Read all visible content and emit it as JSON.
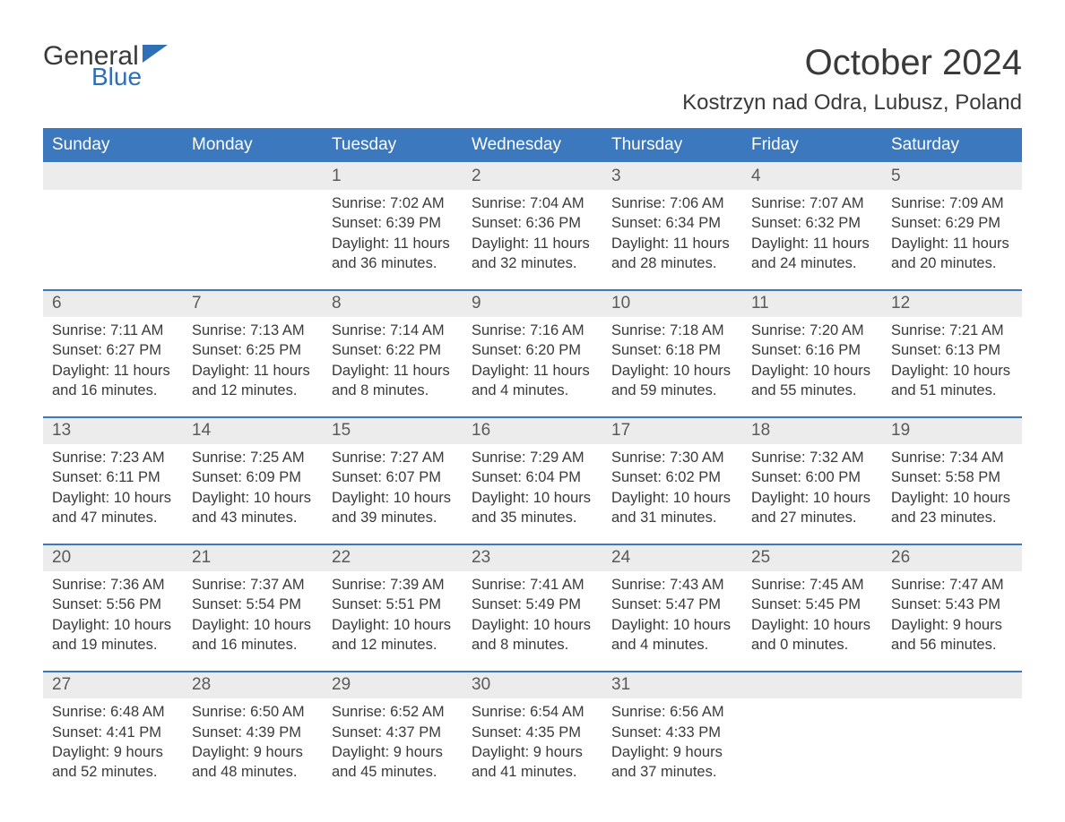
{
  "logo": {
    "text1": "General",
    "text2": "Blue"
  },
  "title": "October 2024",
  "location": "Kostrzyn nad Odra, Lubusz, Poland",
  "header_bg": "#3b78bd",
  "header_text_color": "#ffffff",
  "daynum_bg": "#ececec",
  "rule_color": "#3b78bd",
  "weekdays": [
    "Sunday",
    "Monday",
    "Tuesday",
    "Wednesday",
    "Thursday",
    "Friday",
    "Saturday"
  ],
  "weeks": [
    {
      "first": false,
      "nums": [
        "",
        "",
        "1",
        "2",
        "3",
        "4",
        "5"
      ],
      "cells": [
        null,
        null,
        {
          "sunrise": "Sunrise: 7:02 AM",
          "sunset": "Sunset: 6:39 PM",
          "dl1": "Daylight: 11 hours",
          "dl2": "and 36 minutes."
        },
        {
          "sunrise": "Sunrise: 7:04 AM",
          "sunset": "Sunset: 6:36 PM",
          "dl1": "Daylight: 11 hours",
          "dl2": "and 32 minutes."
        },
        {
          "sunrise": "Sunrise: 7:06 AM",
          "sunset": "Sunset: 6:34 PM",
          "dl1": "Daylight: 11 hours",
          "dl2": "and 28 minutes."
        },
        {
          "sunrise": "Sunrise: 7:07 AM",
          "sunset": "Sunset: 6:32 PM",
          "dl1": "Daylight: 11 hours",
          "dl2": "and 24 minutes."
        },
        {
          "sunrise": "Sunrise: 7:09 AM",
          "sunset": "Sunset: 6:29 PM",
          "dl1": "Daylight: 11 hours",
          "dl2": "and 20 minutes."
        }
      ]
    },
    {
      "nums": [
        "6",
        "7",
        "8",
        "9",
        "10",
        "11",
        "12"
      ],
      "cells": [
        {
          "sunrise": "Sunrise: 7:11 AM",
          "sunset": "Sunset: 6:27 PM",
          "dl1": "Daylight: 11 hours",
          "dl2": "and 16 minutes."
        },
        {
          "sunrise": "Sunrise: 7:13 AM",
          "sunset": "Sunset: 6:25 PM",
          "dl1": "Daylight: 11 hours",
          "dl2": "and 12 minutes."
        },
        {
          "sunrise": "Sunrise: 7:14 AM",
          "sunset": "Sunset: 6:22 PM",
          "dl1": "Daylight: 11 hours",
          "dl2": "and 8 minutes."
        },
        {
          "sunrise": "Sunrise: 7:16 AM",
          "sunset": "Sunset: 6:20 PM",
          "dl1": "Daylight: 11 hours",
          "dl2": "and 4 minutes."
        },
        {
          "sunrise": "Sunrise: 7:18 AM",
          "sunset": "Sunset: 6:18 PM",
          "dl1": "Daylight: 10 hours",
          "dl2": "and 59 minutes."
        },
        {
          "sunrise": "Sunrise: 7:20 AM",
          "sunset": "Sunset: 6:16 PM",
          "dl1": "Daylight: 10 hours",
          "dl2": "and 55 minutes."
        },
        {
          "sunrise": "Sunrise: 7:21 AM",
          "sunset": "Sunset: 6:13 PM",
          "dl1": "Daylight: 10 hours",
          "dl2": "and 51 minutes."
        }
      ]
    },
    {
      "nums": [
        "13",
        "14",
        "15",
        "16",
        "17",
        "18",
        "19"
      ],
      "cells": [
        {
          "sunrise": "Sunrise: 7:23 AM",
          "sunset": "Sunset: 6:11 PM",
          "dl1": "Daylight: 10 hours",
          "dl2": "and 47 minutes."
        },
        {
          "sunrise": "Sunrise: 7:25 AM",
          "sunset": "Sunset: 6:09 PM",
          "dl1": "Daylight: 10 hours",
          "dl2": "and 43 minutes."
        },
        {
          "sunrise": "Sunrise: 7:27 AM",
          "sunset": "Sunset: 6:07 PM",
          "dl1": "Daylight: 10 hours",
          "dl2": "and 39 minutes."
        },
        {
          "sunrise": "Sunrise: 7:29 AM",
          "sunset": "Sunset: 6:04 PM",
          "dl1": "Daylight: 10 hours",
          "dl2": "and 35 minutes."
        },
        {
          "sunrise": "Sunrise: 7:30 AM",
          "sunset": "Sunset: 6:02 PM",
          "dl1": "Daylight: 10 hours",
          "dl2": "and 31 minutes."
        },
        {
          "sunrise": "Sunrise: 7:32 AM",
          "sunset": "Sunset: 6:00 PM",
          "dl1": "Daylight: 10 hours",
          "dl2": "and 27 minutes."
        },
        {
          "sunrise": "Sunrise: 7:34 AM",
          "sunset": "Sunset: 5:58 PM",
          "dl1": "Daylight: 10 hours",
          "dl2": "and 23 minutes."
        }
      ]
    },
    {
      "nums": [
        "20",
        "21",
        "22",
        "23",
        "24",
        "25",
        "26"
      ],
      "cells": [
        {
          "sunrise": "Sunrise: 7:36 AM",
          "sunset": "Sunset: 5:56 PM",
          "dl1": "Daylight: 10 hours",
          "dl2": "and 19 minutes."
        },
        {
          "sunrise": "Sunrise: 7:37 AM",
          "sunset": "Sunset: 5:54 PM",
          "dl1": "Daylight: 10 hours",
          "dl2": "and 16 minutes."
        },
        {
          "sunrise": "Sunrise: 7:39 AM",
          "sunset": "Sunset: 5:51 PM",
          "dl1": "Daylight: 10 hours",
          "dl2": "and 12 minutes."
        },
        {
          "sunrise": "Sunrise: 7:41 AM",
          "sunset": "Sunset: 5:49 PM",
          "dl1": "Daylight: 10 hours",
          "dl2": "and 8 minutes."
        },
        {
          "sunrise": "Sunrise: 7:43 AM",
          "sunset": "Sunset: 5:47 PM",
          "dl1": "Daylight: 10 hours",
          "dl2": "and 4 minutes."
        },
        {
          "sunrise": "Sunrise: 7:45 AM",
          "sunset": "Sunset: 5:45 PM",
          "dl1": "Daylight: 10 hours",
          "dl2": "and 0 minutes."
        },
        {
          "sunrise": "Sunrise: 7:47 AM",
          "sunset": "Sunset: 5:43 PM",
          "dl1": "Daylight: 9 hours",
          "dl2": "and 56 minutes."
        }
      ]
    },
    {
      "nums": [
        "27",
        "28",
        "29",
        "30",
        "31",
        "",
        ""
      ],
      "cells": [
        {
          "sunrise": "Sunrise: 6:48 AM",
          "sunset": "Sunset: 4:41 PM",
          "dl1": "Daylight: 9 hours",
          "dl2": "and 52 minutes."
        },
        {
          "sunrise": "Sunrise: 6:50 AM",
          "sunset": "Sunset: 4:39 PM",
          "dl1": "Daylight: 9 hours",
          "dl2": "and 48 minutes."
        },
        {
          "sunrise": "Sunrise: 6:52 AM",
          "sunset": "Sunset: 4:37 PM",
          "dl1": "Daylight: 9 hours",
          "dl2": "and 45 minutes."
        },
        {
          "sunrise": "Sunrise: 6:54 AM",
          "sunset": "Sunset: 4:35 PM",
          "dl1": "Daylight: 9 hours",
          "dl2": "and 41 minutes."
        },
        {
          "sunrise": "Sunrise: 6:56 AM",
          "sunset": "Sunset: 4:33 PM",
          "dl1": "Daylight: 9 hours",
          "dl2": "and 37 minutes."
        },
        null,
        null
      ]
    }
  ]
}
